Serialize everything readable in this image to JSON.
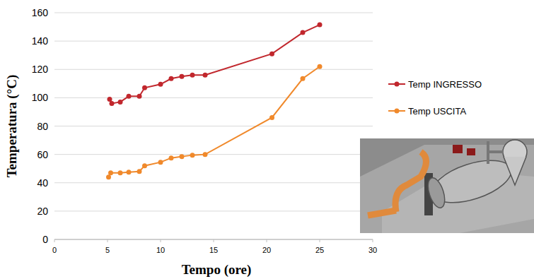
{
  "chart_data": {
    "type": "line",
    "x_label": "Tempo (ore)",
    "y_label": "Temperatura (°C)",
    "xlim": [
      0,
      30
    ],
    "xticks": [
      0,
      5,
      10,
      15,
      20,
      25,
      30
    ],
    "ylim": [
      0,
      160
    ],
    "yticks": [
      0,
      20,
      40,
      60,
      80,
      100,
      120,
      140,
      160
    ],
    "grid": true,
    "legend": "right",
    "series": [
      {
        "name": "Temp INGRESSO",
        "color": "#c1272d",
        "marker": "circle",
        "line_style": "solid",
        "x": [
          5.2,
          5.4,
          6.2,
          7.0,
          8.0,
          8.5,
          10.0,
          11.0,
          12.0,
          13.0,
          14.2,
          20.5,
          23.4,
          25.0
        ],
        "values": [
          99,
          96,
          97,
          101,
          101,
          107,
          109.5,
          113.5,
          115,
          116,
          116,
          131,
          146,
          151.5
        ]
      },
      {
        "name": "Temp USCITA",
        "color": "#f0892b",
        "marker": "circle",
        "line_style": "solid",
        "x": [
          5.1,
          5.3,
          6.2,
          7.0,
          8.0,
          8.5,
          10.0,
          11.0,
          12.0,
          13.0,
          14.2,
          20.5,
          23.4,
          25.0
        ],
        "values": [
          44,
          47,
          47,
          47.5,
          48,
          52,
          54.5,
          57.5,
          58.5,
          59.5,
          60,
          86,
          113.5,
          122
        ]
      }
    ]
  }
}
